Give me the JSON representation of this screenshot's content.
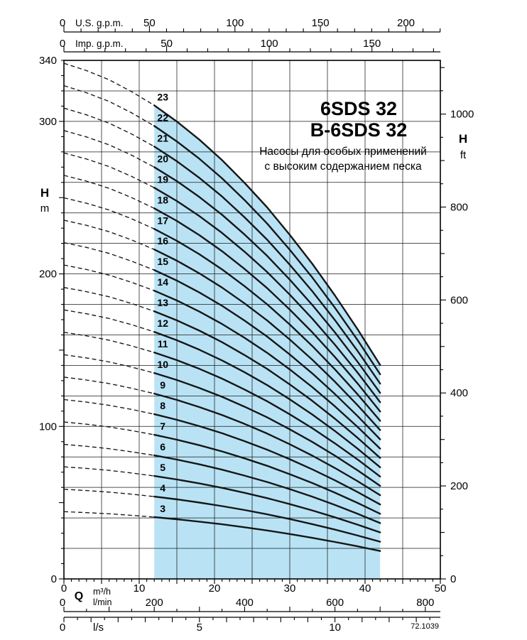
{
  "colors": {
    "region_fill": "#b9e3f5",
    "curve": "#161616",
    "grid": "#1a1a1a",
    "axis": "#000000"
  },
  "chart_data": {
    "type": "line",
    "title": "6SDS 32",
    "title2": "B-6SDS 32",
    "subtitle_line1": "Насосы для особых применений",
    "subtitle_line2": "с высоким содержанием песка",
    "code": "72.1039",
    "xlabel": "Q",
    "ylabel_left": "H",
    "ylabel_left_unit": "m",
    "ylabel_right": "H",
    "ylabel_right_unit": "ft",
    "x_range_m3h": [
      0,
      50
    ],
    "y_range_m": [
      0,
      340
    ],
    "grid": {
      "x_step_m3h": 5,
      "y_step_m": 20
    },
    "stages": [
      3,
      4,
      5,
      6,
      7,
      8,
      9,
      10,
      11,
      12,
      13,
      14,
      15,
      16,
      17,
      18,
      19,
      20,
      21,
      22,
      23
    ],
    "q_samples_m3h": [
      0,
      3,
      6,
      9,
      12,
      15,
      18,
      21,
      24,
      27,
      30,
      33,
      36,
      39,
      42
    ],
    "single_stage_head_m": [
      14.7,
      14.49,
      14.23,
      13.89,
      13.5,
      13.04,
      12.52,
      11.94,
      11.29,
      10.59,
      9.81,
      8.98,
      8.08,
      7.12,
      6.1
    ],
    "q_dashed_end": 12,
    "scales": {
      "us_gpm": {
        "label": "U.S. g.p.m.",
        "zero": "0",
        "major_labels": [
          50,
          100,
          150,
          200
        ],
        "per_m3h": 4.4029,
        "minor_step": 10,
        "major_step": 50,
        "max": 220
      },
      "imp_gpm": {
        "label": "Imp. g.p.m.",
        "zero": "0",
        "major_labels": [
          50,
          100,
          150
        ],
        "per_m3h": 3.6662,
        "minor_step": 10,
        "major_step": 50,
        "max": 180
      },
      "m3h": {
        "unit_primary": "m³/h",
        "unit_secondary": "l/min",
        "labels": [
          0,
          10,
          20,
          30,
          40,
          50
        ],
        "minor_step": 1,
        "major_step": 5
      },
      "lmin": {
        "zero": "0",
        "major_labels": [
          200,
          400,
          600,
          800
        ],
        "per_m3h": 16.667,
        "minor_step": 50,
        "major_step": 100,
        "max": 800
      },
      "ls": {
        "label": "l/s",
        "zero": "0",
        "major_labels": [
          5,
          10
        ],
        "per_m3h": 0.27778,
        "minor_step": 0.5,
        "major_step": 1,
        "max": 13.5
      },
      "m": {
        "labels": [
          0,
          100,
          200,
          300
        ],
        "top_label": 340,
        "minor_step": 10,
        "major_step": 50
      },
      "ft": {
        "labels": [
          0,
          200,
          400,
          600,
          800,
          1000
        ],
        "ft_per_m": 3.2808,
        "minor_step": 50,
        "major_step": 200,
        "max": 1100
      }
    }
  }
}
